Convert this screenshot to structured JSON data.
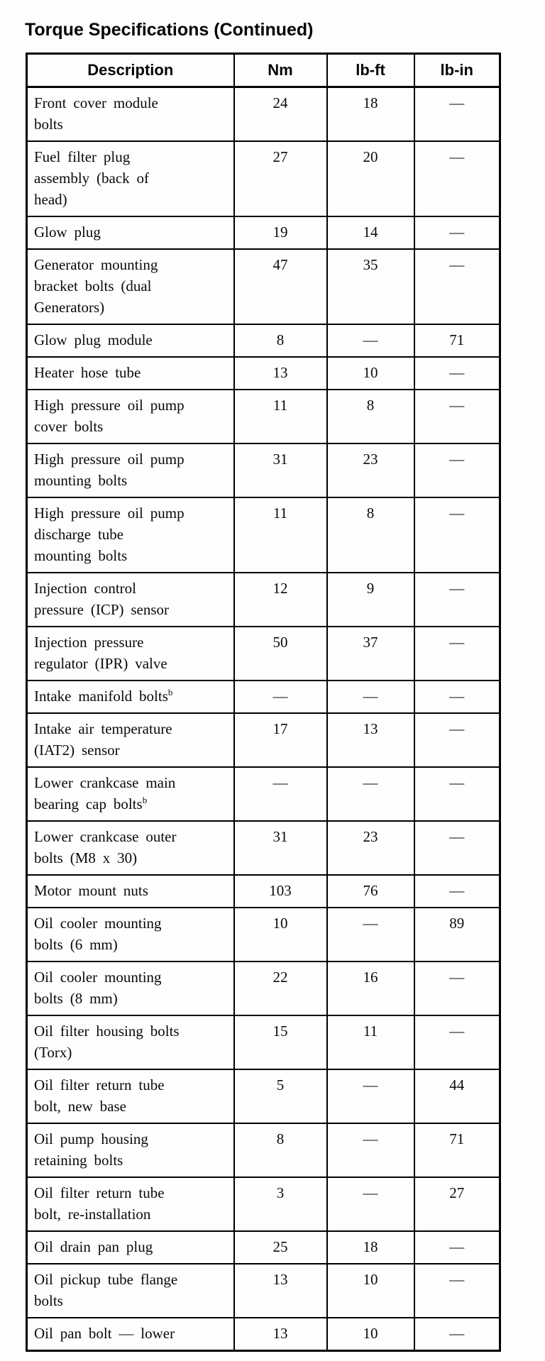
{
  "page": {
    "title": "Torque Specifications (Continued)"
  },
  "table": {
    "headers": [
      "Description",
      "Nm",
      "lb-ft",
      "lb-in"
    ],
    "empty_marker": "—",
    "rows": [
      {
        "description": "Front cover module\nbolts",
        "nm": "24",
        "lb_ft": "18",
        "lb_in": "—"
      },
      {
        "description": "Fuel filter plug\nassembly (back of\nhead)",
        "nm": "27",
        "lb_ft": "20",
        "lb_in": "—"
      },
      {
        "description": "Glow plug",
        "nm": "19",
        "lb_ft": "14",
        "lb_in": "—"
      },
      {
        "description": "Generator mounting\nbracket bolts (dual\nGenerators)",
        "nm": "47",
        "lb_ft": "35",
        "lb_in": "—"
      },
      {
        "description": "Glow plug module",
        "nm": "8",
        "lb_ft": "—",
        "lb_in": "71"
      },
      {
        "description": "Heater hose tube",
        "nm": "13",
        "lb_ft": "10",
        "lb_in": "—"
      },
      {
        "description": "High pressure oil pump\ncover bolts",
        "nm": "11",
        "lb_ft": "8",
        "lb_in": "—"
      },
      {
        "description": "High pressure oil pump\nmounting bolts",
        "nm": "31",
        "lb_ft": "23",
        "lb_in": "—"
      },
      {
        "description": "High pressure oil pump\ndischarge tube\nmounting bolts",
        "nm": "11",
        "lb_ft": "8",
        "lb_in": "—"
      },
      {
        "description": "Injection control\npressure (ICP) sensor",
        "nm": "12",
        "lb_ft": "9",
        "lb_in": "—"
      },
      {
        "description": "Injection pressure\nregulator (IPR) valve",
        "nm": "50",
        "lb_ft": "37",
        "lb_in": "—"
      },
      {
        "description": "Intake manifold bolts",
        "sup": "b",
        "nm": "—",
        "lb_ft": "—",
        "lb_in": "—"
      },
      {
        "description": "Intake air temperature\n(IAT2) sensor",
        "nm": "17",
        "lb_ft": "13",
        "lb_in": "—"
      },
      {
        "description": "Lower crankcase main\nbearing cap bolts",
        "sup": "b",
        "nm": "—",
        "lb_ft": "—",
        "lb_in": "—"
      },
      {
        "description": "Lower crankcase outer\nbolts (M8 x 30)",
        "nm": "31",
        "lb_ft": "23",
        "lb_in": "—"
      },
      {
        "description": "Motor mount nuts",
        "nm": "103",
        "lb_ft": "76",
        "lb_in": "—"
      },
      {
        "description": "Oil cooler mounting\nbolts (6 mm)",
        "nm": "10",
        "lb_ft": "—",
        "lb_in": "89"
      },
      {
        "description": "Oil cooler mounting\nbolts (8 mm)",
        "nm": "22",
        "lb_ft": "16",
        "lb_in": "—"
      },
      {
        "description": "Oil filter housing bolts\n(Torx)",
        "nm": "15",
        "lb_ft": "11",
        "lb_in": "—"
      },
      {
        "description": "Oil filter return tube\nbolt, new base",
        "nm": "5",
        "lb_ft": "—",
        "lb_in": "44"
      },
      {
        "description": "Oil pump housing\nretaining bolts",
        "nm": "8",
        "lb_ft": "—",
        "lb_in": "71"
      },
      {
        "description": "Oil filter return tube\nbolt, re-installation",
        "nm": "3",
        "lb_ft": "—",
        "lb_in": "27"
      },
      {
        "description": "Oil drain pan plug",
        "nm": "25",
        "lb_ft": "18",
        "lb_in": "—"
      },
      {
        "description": "Oil pickup tube flange\nbolts",
        "nm": "13",
        "lb_ft": "10",
        "lb_in": "—"
      },
      {
        "description": "Oil pan bolt — lower",
        "nm": "13",
        "lb_ft": "10",
        "lb_in": "—"
      }
    ]
  }
}
